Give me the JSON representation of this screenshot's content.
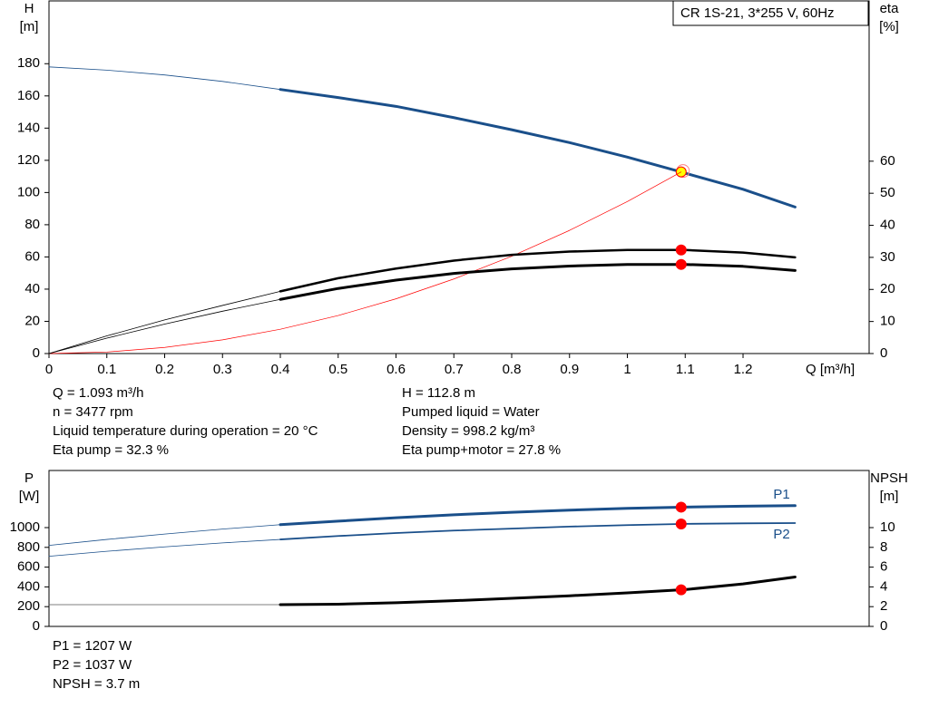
{
  "chart_data": [
    {
      "type": "line",
      "title": "CR 1S-21, 3*255 V, 60Hz",
      "ylabel": [
        "H",
        "[m]"
      ],
      "y2label": [
        "eta",
        "[%]"
      ],
      "xlabel": "Q [m³/h]",
      "xlim": [
        0,
        1.418
      ],
      "xticks": [
        0,
        0.1,
        0.2,
        0.3,
        0.4,
        0.5,
        0.6,
        0.7,
        0.8,
        0.9,
        1.0,
        1.1,
        1.2
      ],
      "ylim": [
        0,
        219
      ],
      "yticks": [
        0,
        20,
        40,
        60,
        80,
        100,
        120,
        140,
        160,
        180
      ],
      "y2lim": [
        0,
        110
      ],
      "y2ticks": [
        0,
        10,
        20,
        30,
        40,
        50,
        60
      ],
      "duty_q": 1.093,
      "x": [
        0,
        0.1,
        0.2,
        0.3,
        0.4,
        0.5,
        0.6,
        0.7,
        0.8,
        0.9,
        1.0,
        1.093,
        1.1,
        1.2,
        1.29
      ],
      "series": [
        {
          "color": "#1a4f8a",
          "width": 0.8,
          "values": [
            178,
            176,
            173,
            169,
            164,
            null,
            null,
            null,
            null,
            null,
            null,
            null,
            null,
            null,
            null
          ]
        },
        {
          "color": "#1a4f8a",
          "width": 3,
          "marker": "#ffff00",
          "values": [
            null,
            null,
            null,
            null,
            164,
            159,
            153.5,
            146.5,
            139,
            131,
            122,
            112.8,
            112,
            102,
            91
          ]
        },
        {
          "color": "#ff0000",
          "width": 0.7,
          "values": [
            0,
            0.94,
            3.8,
            8.5,
            15.1,
            23.6,
            34,
            46.3,
            60.4,
            76.5,
            94.4,
            112.8,
            null,
            null,
            null
          ]
        },
        {
          "color": "#000000",
          "width": 0.8,
          "axis": "y2",
          "values": [
            0,
            5.5,
            10.5,
            15,
            19.4,
            null,
            null,
            null,
            null,
            null,
            null,
            null,
            null,
            null,
            null
          ]
        },
        {
          "color": "#000000",
          "width": 2.5,
          "axis": "y2",
          "marker": "#ff0000",
          "values": [
            null,
            null,
            null,
            null,
            19.4,
            23.5,
            26.5,
            29,
            30.8,
            31.8,
            32.3,
            32.3,
            32.3,
            31.5,
            30
          ]
        },
        {
          "color": "#000000",
          "width": 0.8,
          "axis": "y2",
          "values": [
            0,
            4.8,
            9.2,
            13.2,
            16.9,
            null,
            null,
            null,
            null,
            null,
            null,
            null,
            null,
            null,
            null
          ]
        },
        {
          "color": "#000000",
          "width": 3,
          "axis": "y2",
          "marker": "#ff0000",
          "values": [
            null,
            null,
            null,
            null,
            16.9,
            20.3,
            22.9,
            25,
            26.4,
            27.3,
            27.8,
            27.8,
            27.8,
            27.2,
            25.9
          ]
        }
      ],
      "info": [
        [
          "Q = 1.093 m³/h",
          "n = 3477 rpm",
          "Liquid temperature during operation = 20 °C",
          "Eta pump = 32.3 %"
        ],
        [
          "H = 112.8 m",
          "Pumped liquid = Water",
          "Density = 998.2 kg/m³",
          "Eta pump+motor = 27.8 %"
        ]
      ]
    },
    {
      "type": "line",
      "ylabel": [
        "P",
        "[W]"
      ],
      "y2label": [
        "NPSH",
        "[m]"
      ],
      "xlim": [
        0,
        1.418
      ],
      "ylim": [
        0,
        1578
      ],
      "yticks": [
        0,
        200,
        400,
        600,
        800,
        1000
      ],
      "y2lim": [
        0,
        15.78
      ],
      "y2ticks": [
        0,
        2,
        4,
        6,
        8,
        10
      ],
      "duty_q": 1.093,
      "x": [
        0,
        0.1,
        0.2,
        0.3,
        0.4,
        0.5,
        0.6,
        0.7,
        0.8,
        0.9,
        1.0,
        1.093,
        1.1,
        1.2,
        1.29
      ],
      "series": [
        {
          "color": "#1a4f8a",
          "width": 0.8,
          "values": [
            820,
            880,
            935,
            985,
            1030,
            null,
            null,
            null,
            null,
            null,
            null,
            null,
            null,
            null,
            null
          ]
        },
        {
          "name": "P1",
          "label_pos": "above",
          "color": "#1a4f8a",
          "width": 3,
          "marker": "#ff0000",
          "values": [
            null,
            null,
            null,
            null,
            1030,
            1065,
            1100,
            1130,
            1155,
            1177,
            1195,
            1207,
            1208,
            1217,
            1222
          ]
        },
        {
          "color": "#1a4f8a",
          "width": 0.8,
          "values": [
            710,
            760,
            805,
            845,
            880,
            null,
            null,
            null,
            null,
            null,
            null,
            null,
            null,
            null,
            null
          ]
        },
        {
          "name": "P2",
          "label_pos": "below",
          "color": "#1a4f8a",
          "width": 1.8,
          "marker": "#ff0000",
          "values": [
            null,
            null,
            null,
            null,
            880,
            915,
            945,
            970,
            990,
            1010,
            1025,
            1037,
            1038,
            1043,
            1046
          ]
        },
        {
          "color": "#555555",
          "width": 0.8,
          "axis": "y2",
          "values": [
            2.2,
            2.2,
            2.2,
            2.2,
            2.2,
            null,
            null,
            null,
            null,
            null,
            null,
            null,
            null,
            null,
            null
          ]
        },
        {
          "color": "#000000",
          "width": 3,
          "axis": "y2",
          "marker": "#ff0000",
          "values": [
            null,
            null,
            null,
            null,
            2.2,
            2.25,
            2.4,
            2.6,
            2.85,
            3.1,
            3.4,
            3.7,
            3.73,
            4.3,
            5.0
          ]
        }
      ],
      "info": [
        [
          "P1 = 1207 W",
          "P2 = 1037 W",
          "NPSH = 3.7 m"
        ]
      ]
    }
  ]
}
